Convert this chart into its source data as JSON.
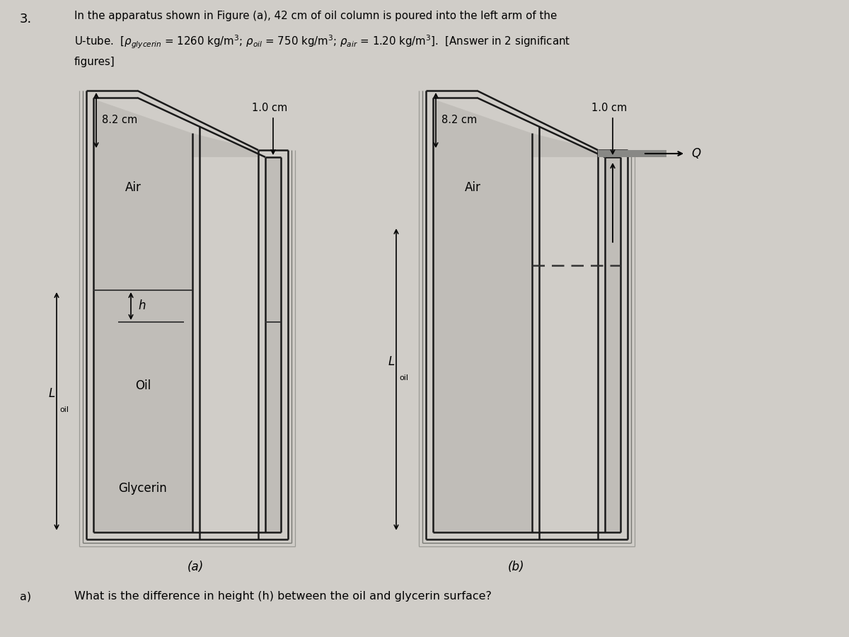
{
  "bg_color": "#d0cdc8",
  "wall_color": "#1a1a1a",
  "fill_interior": "#c8c5c0",
  "fill_shadow": "#a8a5a0",
  "lw": 1.8,
  "header_3": "3.",
  "header_line1": "In the apparatus shown in Figure (a), 42 cm of oil column is poured into the left arm of the",
  "header_line2": "U-tube.  [ρglycerin = 1260 kg/m³; ρoil = 750 kg/m³; ρair = 1.20 kg/m³].  [Answer in 2 significant",
  "header_line3": "figures]",
  "label_82cm_a": "8.2 cm",
  "label_10cm_a": "1.0 cm",
  "label_air_a": "Air",
  "label_oil_a": "Oil",
  "label_glycerin_a": "Glycerin",
  "label_h_a": "h",
  "label_loil_a": "L",
  "label_loil_sub_a": "oil",
  "label_a": "(a)",
  "label_82cm_b": "8.2 cm",
  "label_10cm_b": "1.0 cm",
  "label_air_b": "Air",
  "label_loil_b": "L",
  "label_loil_sub_b": "oil",
  "label_Q": "Q",
  "label_b": "(b)",
  "question_part": "a)",
  "question_text": "What is the difference in height (h) between the oil and glycerin surface?"
}
